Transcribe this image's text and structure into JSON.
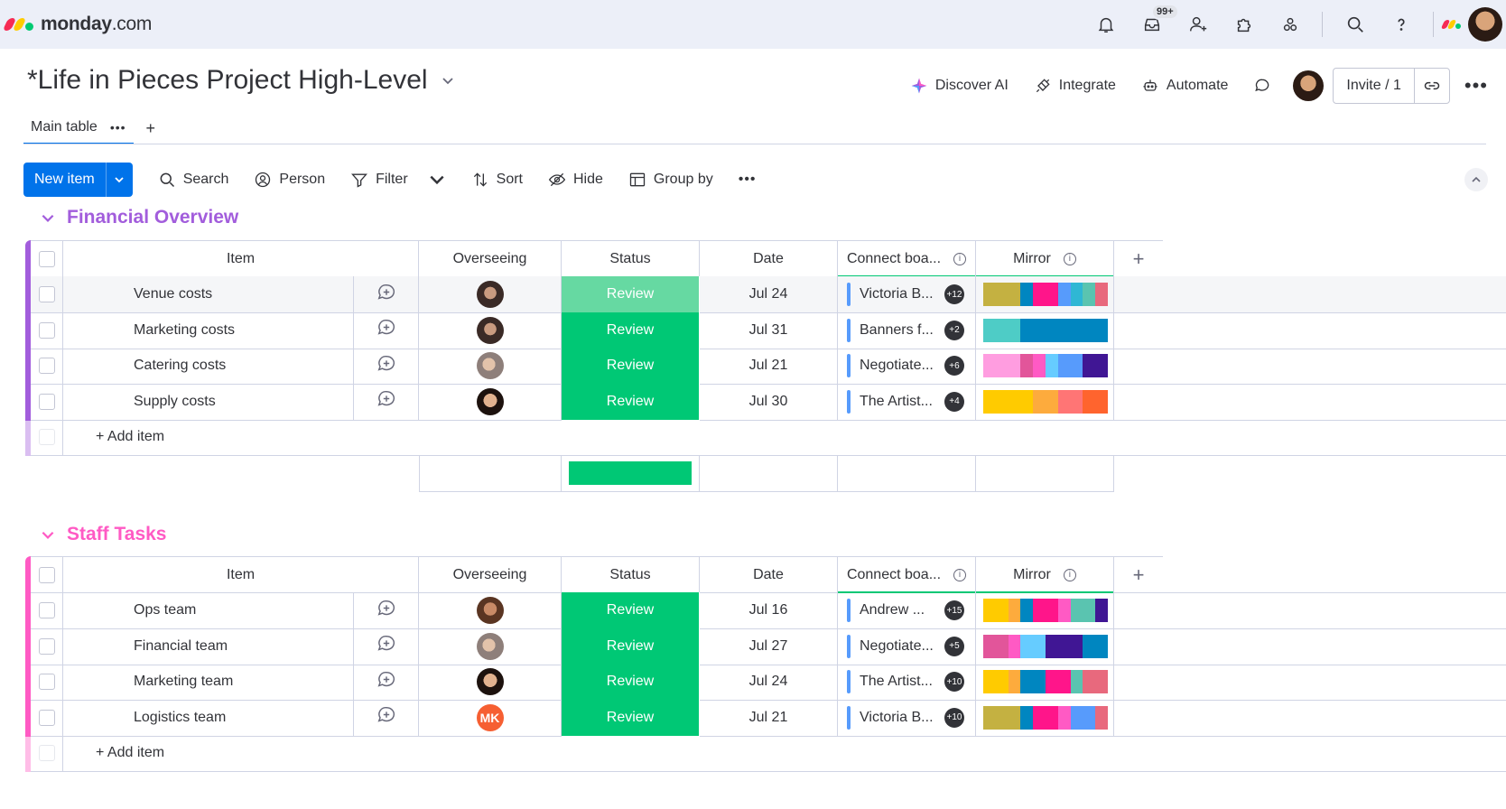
{
  "topbar": {
    "logo_brand": "monday",
    "logo_suffix": ".com",
    "notifications_badge": "99+",
    "logo_colors": [
      "#f62b54",
      "#ffcc00",
      "#00ca72"
    ]
  },
  "board": {
    "title": "*Life in Pieces Project High-Level",
    "actions": {
      "discover_ai": "Discover AI",
      "integrate": "Integrate",
      "automate": "Automate",
      "invite": "Invite / 1"
    }
  },
  "tabs": {
    "main": "Main table"
  },
  "toolbar": {
    "new_item": "New item",
    "search": "Search",
    "person": "Person",
    "filter": "Filter",
    "sort": "Sort",
    "hide": "Hide",
    "group_by": "Group by"
  },
  "columns": {
    "item": "Item",
    "overseeing": "Overseeing",
    "status": "Status",
    "date": "Date",
    "connect": "Connect boa...",
    "mirror": "Mirror"
  },
  "colors": {
    "done_green": "#00c875",
    "group1": "#a25ddc",
    "group2": "#ff5ac4",
    "accent": "#0073ea"
  },
  "groups": [
    {
      "title": "Financial Overview",
      "add_item": "+ Add item",
      "rows": [
        {
          "item": "Venue costs",
          "status": "Review",
          "date": "Jul 24",
          "connect": "Victoria B...",
          "count": "+12",
          "avatar": "av1",
          "mirror": [
            "#c4b141",
            "#c4b141",
            "#c4b141",
            "#0086c0",
            "#ff158a",
            "#ff158a",
            "#579bfc",
            "#2fb7d4",
            "#5ac4b0",
            "#e8697d"
          ]
        },
        {
          "item": "Marketing costs",
          "status": "Review",
          "date": "Jul 31",
          "connect": "Banners f...",
          "count": "+2",
          "avatar": "av1",
          "mirror": [
            "#4eccc6",
            "#4eccc6",
            "#4eccc6",
            "#0086c0",
            "#0086c0",
            "#0086c0",
            "#0086c0",
            "#0086c0",
            "#0086c0",
            "#0086c0"
          ]
        },
        {
          "item": "Catering costs",
          "status": "Review",
          "date": "Jul 21",
          "connect": "Negotiate...",
          "count": "+6",
          "avatar": "av2",
          "mirror": [
            "#ff9de0",
            "#ff9de0",
            "#ff9de0",
            "#e2559a",
            "#ff5ac4",
            "#66ccff",
            "#579bfc",
            "#579bfc",
            "#401694",
            "#401694"
          ]
        },
        {
          "item": "Supply costs",
          "status": "Review",
          "date": "Jul 30",
          "connect": "The Artist...",
          "count": "+4",
          "avatar": "av3",
          "mirror": [
            "#ffcb00",
            "#ffcb00",
            "#ffcb00",
            "#ffcb00",
            "#fdab3d",
            "#fdab3d",
            "#ff7575",
            "#ff7575",
            "#ff642e",
            "#ff642e"
          ]
        }
      ]
    },
    {
      "title": "Staff Tasks",
      "add_item": "+ Add item",
      "rows": [
        {
          "item": "Ops team",
          "status": "Review",
          "date": "Jul 16",
          "connect": "Andrew ...",
          "count": "+15",
          "avatar": "av4",
          "mirror": [
            "#ffcb00",
            "#ffcb00",
            "#fdab3d",
            "#0086c0",
            "#ff158a",
            "#ff158a",
            "#ff5ac4",
            "#5ac4b0",
            "#5ac4b0",
            "#401694"
          ]
        },
        {
          "item": "Financial team",
          "status": "Review",
          "date": "Jul 27",
          "connect": "Negotiate...",
          "count": "+5",
          "avatar": "av2",
          "mirror": [
            "#e2559a",
            "#e2559a",
            "#ff5ac4",
            "#66ccff",
            "#66ccff",
            "#401694",
            "#401694",
            "#401694",
            "#0086c0",
            "#0086c0"
          ]
        },
        {
          "item": "Marketing team",
          "status": "Review",
          "date": "Jul 24",
          "connect": "The Artist...",
          "count": "+10",
          "avatar": "av3",
          "mirror": [
            "#ffcb00",
            "#ffcb00",
            "#fdab3d",
            "#0086c0",
            "#0086c0",
            "#ff158a",
            "#ff158a",
            "#5ac4b0",
            "#e8697d",
            "#e8697d"
          ]
        },
        {
          "item": "Logistics team",
          "status": "Review",
          "date": "Jul 21",
          "connect": "Victoria B...",
          "count": "+10",
          "avatar": "MK",
          "mirror": [
            "#c4b141",
            "#c4b141",
            "#c4b141",
            "#0086c0",
            "#ff158a",
            "#ff158a",
            "#ff5ac4",
            "#579bfc",
            "#579bfc",
            "#e8697d"
          ]
        }
      ]
    }
  ]
}
